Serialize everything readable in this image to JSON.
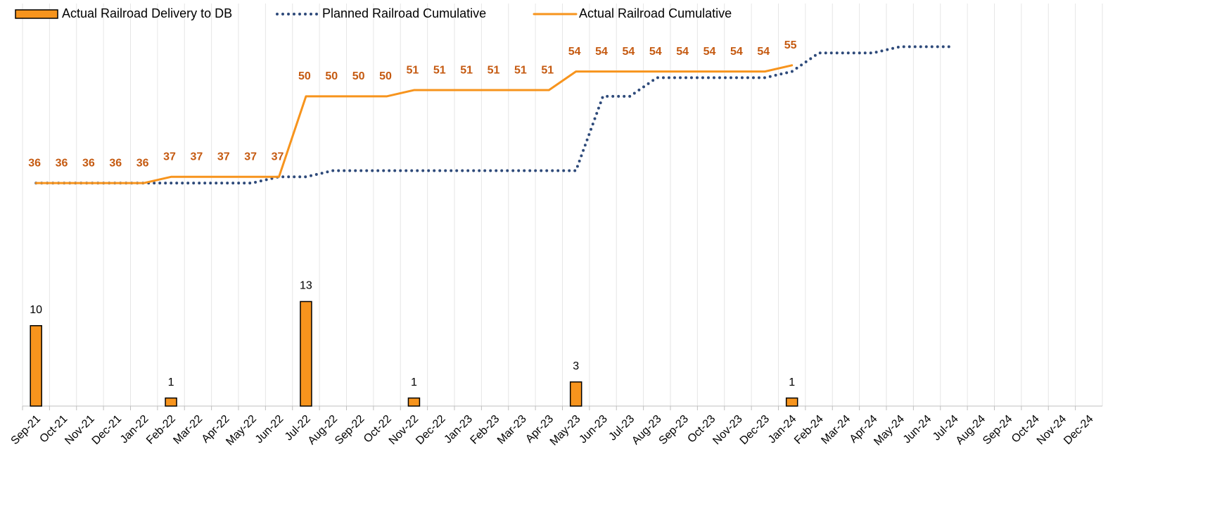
{
  "chart_data": {
    "type": "combo",
    "categories": [
      "Sep-21",
      "Oct-21",
      "Nov-21",
      "Dec-21",
      "Jan-22",
      "Feb-22",
      "Mar-22",
      "Apr-22",
      "May-22",
      "Jun-22",
      "Jul-22",
      "Aug-22",
      "Sep-22",
      "Oct-22",
      "Nov-22",
      "Dec-22",
      "Jan-23",
      "Feb-23",
      "Mar-23",
      "Apr-23",
      "May-23",
      "Jun-23",
      "Jul-23",
      "Aug-23",
      "Sep-23",
      "Oct-23",
      "Nov-23",
      "Dec-23",
      "Jan-24",
      "Feb-24",
      "Mar-24",
      "Apr-24",
      "May-24",
      "Jun-24",
      "Jul-24",
      "Aug-24",
      "Sep-24",
      "Oct-24",
      "Nov-24",
      "Dec-24"
    ],
    "series": [
      {
        "name": "Actual Railroad Delivery to DB",
        "type": "bar",
        "color": "#f7941d",
        "values": [
          10,
          null,
          null,
          null,
          null,
          1,
          null,
          null,
          null,
          null,
          13,
          null,
          null,
          null,
          1,
          null,
          null,
          null,
          null,
          null,
          3,
          null,
          null,
          null,
          null,
          null,
          null,
          null,
          1,
          null,
          null,
          null,
          null,
          null,
          null,
          null,
          null,
          null,
          null,
          null
        ]
      },
      {
        "name": "Planned Railroad Cumulative",
        "type": "line",
        "axis": "y2",
        "color": "#2e4a7a",
        "line_style": "dotted",
        "values": [
          36,
          36,
          36,
          36,
          36,
          36,
          36,
          36,
          36,
          37,
          37,
          38,
          38,
          38,
          38,
          38,
          38,
          38,
          38,
          38,
          38,
          50,
          50,
          53,
          53,
          53,
          53,
          53,
          54,
          57,
          57,
          57,
          58,
          58,
          58,
          null,
          null,
          null,
          null,
          null
        ]
      },
      {
        "name": "Actual Railroad Cumulative",
        "type": "line",
        "axis": "y2",
        "color": "#f7941d",
        "line_style": "solid",
        "label_color": "#c55a11",
        "values": [
          36,
          36,
          36,
          36,
          36,
          37,
          37,
          37,
          37,
          37,
          50,
          50,
          50,
          50,
          51,
          51,
          51,
          51,
          51,
          51,
          54,
          54,
          54,
          54,
          54,
          54,
          54,
          54,
          55,
          null,
          null,
          null,
          null,
          null,
          null,
          null,
          null,
          null,
          null,
          null
        ]
      }
    ],
    "ylim": [
      0,
      47
    ],
    "y2lim": [
      0,
      61
    ],
    "grid": true
  }
}
